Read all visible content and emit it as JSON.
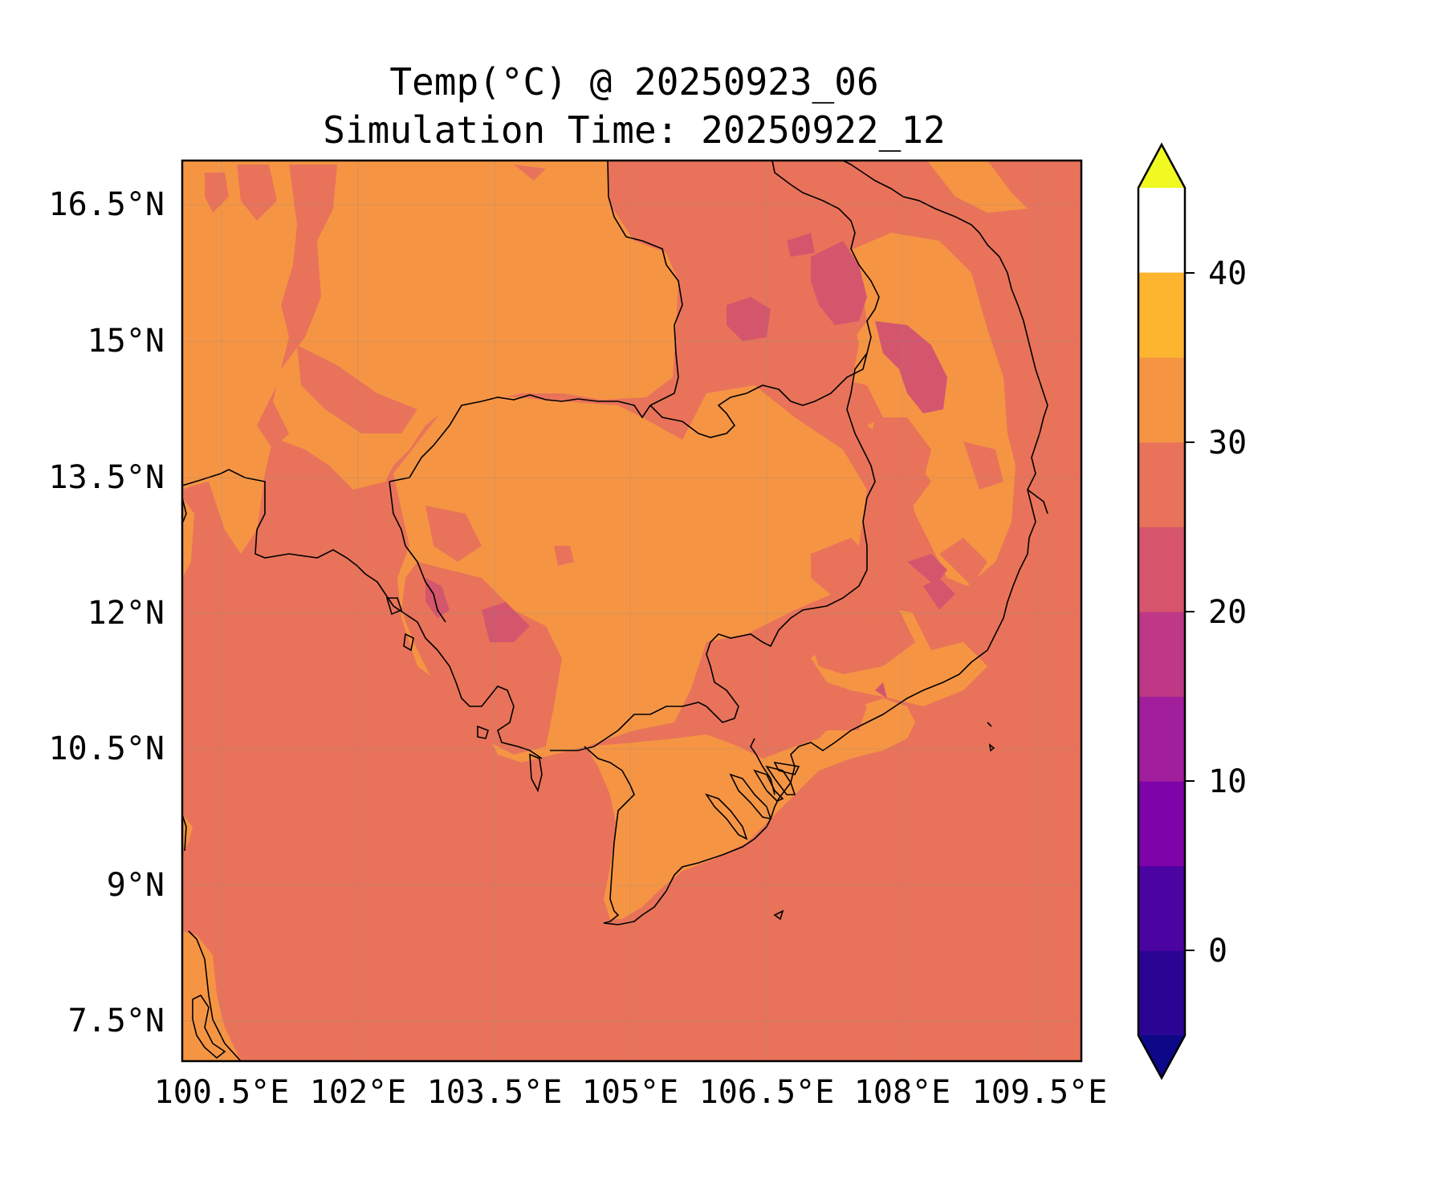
{
  "map": {
    "title_line1": "Temp(°C) @ 20250923_06",
    "title_line2": "Simulation Time: 20250922_12",
    "lat_ticks": [
      "16.5°N",
      "15°N",
      "13.5°N",
      "12°N",
      "10.5°N",
      "9°N",
      "7.5°N"
    ],
    "lon_ticks": [
      "100.5°E",
      "102°E",
      "103.5°E",
      "105°E",
      "106.5°E",
      "108°E",
      "109.5°E"
    ],
    "colors": {
      "sea_25_30": "#e8735a",
      "land_30_35": "#f59544",
      "band_20_25": "#d4566d",
      "band_15_20": "#c03a83",
      "coastline": "#000000"
    }
  },
  "colorbar": {
    "labels": [
      "40",
      "30",
      "20",
      "10",
      "0"
    ],
    "extend": "both",
    "levels": [
      -5,
      0,
      5,
      10,
      15,
      20,
      25,
      30,
      35,
      40,
      45
    ],
    "colors": [
      "#0d0887",
      "#2a0593",
      "#4b03a1",
      "#7e03a8",
      "#a11e9c",
      "#be3885",
      "#d6556d",
      "#e8735a",
      "#f59544",
      "#fdb42f",
      "#f0f921"
    ]
  }
}
